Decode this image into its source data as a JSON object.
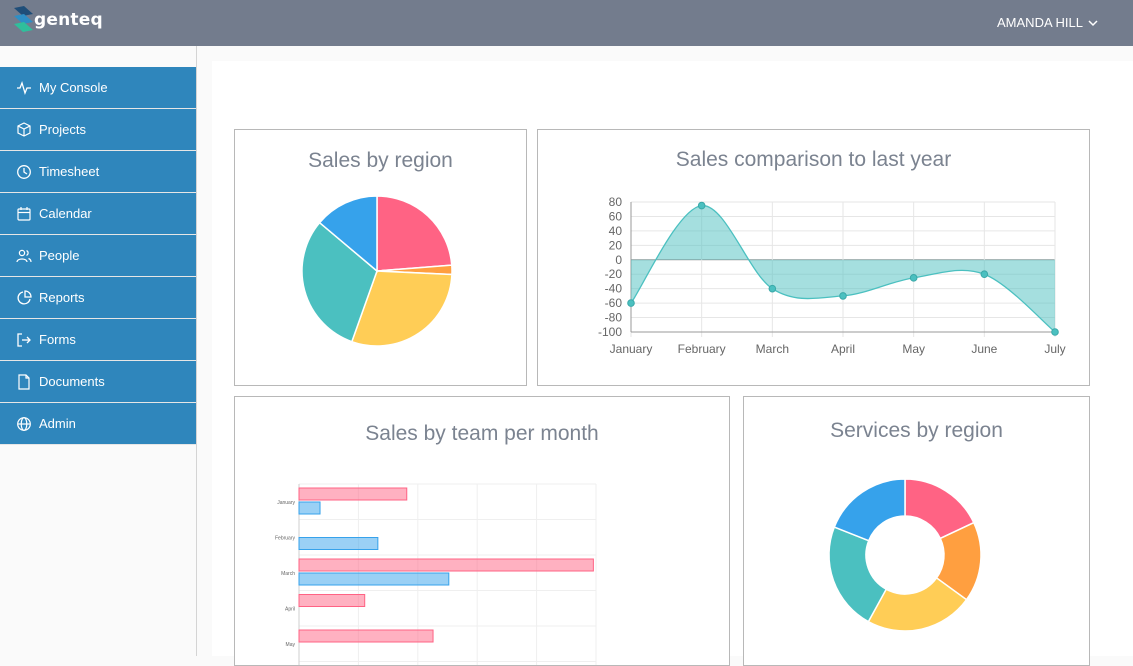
{
  "brand": {
    "name": "genteq"
  },
  "user": {
    "name": "AMANDA HILL",
    "icon": "chevron-down-icon"
  },
  "sidebar": {
    "items": [
      {
        "label": "My Console",
        "icon": "activity-icon"
      },
      {
        "label": "Projects",
        "icon": "cube-icon"
      },
      {
        "label": "Timesheet",
        "icon": "clock-icon"
      },
      {
        "label": "Calendar",
        "icon": "calendar-icon"
      },
      {
        "label": "People",
        "icon": "users-icon"
      },
      {
        "label": "Reports",
        "icon": "pie-chart-icon"
      },
      {
        "label": "Forms",
        "icon": "log-out-icon"
      },
      {
        "label": "Documents",
        "icon": "file-icon"
      },
      {
        "label": "Admin",
        "icon": "globe-icon"
      }
    ],
    "color": "#2f86bc"
  },
  "charts": {
    "sales_region": {
      "title": "Sales by region"
    },
    "sales_comparison": {
      "title": "Sales comparison to last year"
    },
    "sales_team": {
      "title": "Sales by team per month"
    },
    "services_region": {
      "title": "Services by region"
    }
  },
  "chart_data": [
    {
      "type": "pie",
      "title": "Sales by region",
      "values": [
        24,
        2,
        30,
        31,
        14
      ],
      "colors": [
        "#ff6384",
        "#ff9f40",
        "#ffcd56",
        "#4bc0c0",
        "#36a2eb"
      ]
    },
    {
      "type": "area",
      "title": "Sales comparison to last year",
      "categories": [
        "January",
        "February",
        "March",
        "April",
        "May",
        "June",
        "July"
      ],
      "values": [
        -60,
        75,
        -40,
        -50,
        -25,
        -20,
        -100
      ],
      "ylim": [
        -100,
        80
      ],
      "yticks": [
        80,
        60,
        40,
        20,
        0,
        -20,
        -40,
        -60,
        -80,
        -100
      ],
      "grid": true,
      "color": "#4bc0c0"
    },
    {
      "type": "bar",
      "orientation": "horizontal",
      "title": "Sales by team per month",
      "categories": [
        "January",
        "February",
        "March",
        "April",
        "May"
      ],
      "series": [
        {
          "values": [
            41,
            0,
            112,
            25,
            51
          ],
          "color": "#ff6384"
        },
        {
          "values": [
            8,
            30,
            57,
            0,
            0
          ],
          "color": "#36a2eb"
        }
      ],
      "xlim": [
        0,
        113
      ],
      "grid": true
    },
    {
      "type": "pie",
      "title": "Services by region",
      "donut": true,
      "values": [
        18,
        17,
        23,
        23,
        19
      ],
      "colors": [
        "#ff6384",
        "#ff9f40",
        "#ffcd56",
        "#4bc0c0",
        "#36a2eb"
      ]
    }
  ]
}
